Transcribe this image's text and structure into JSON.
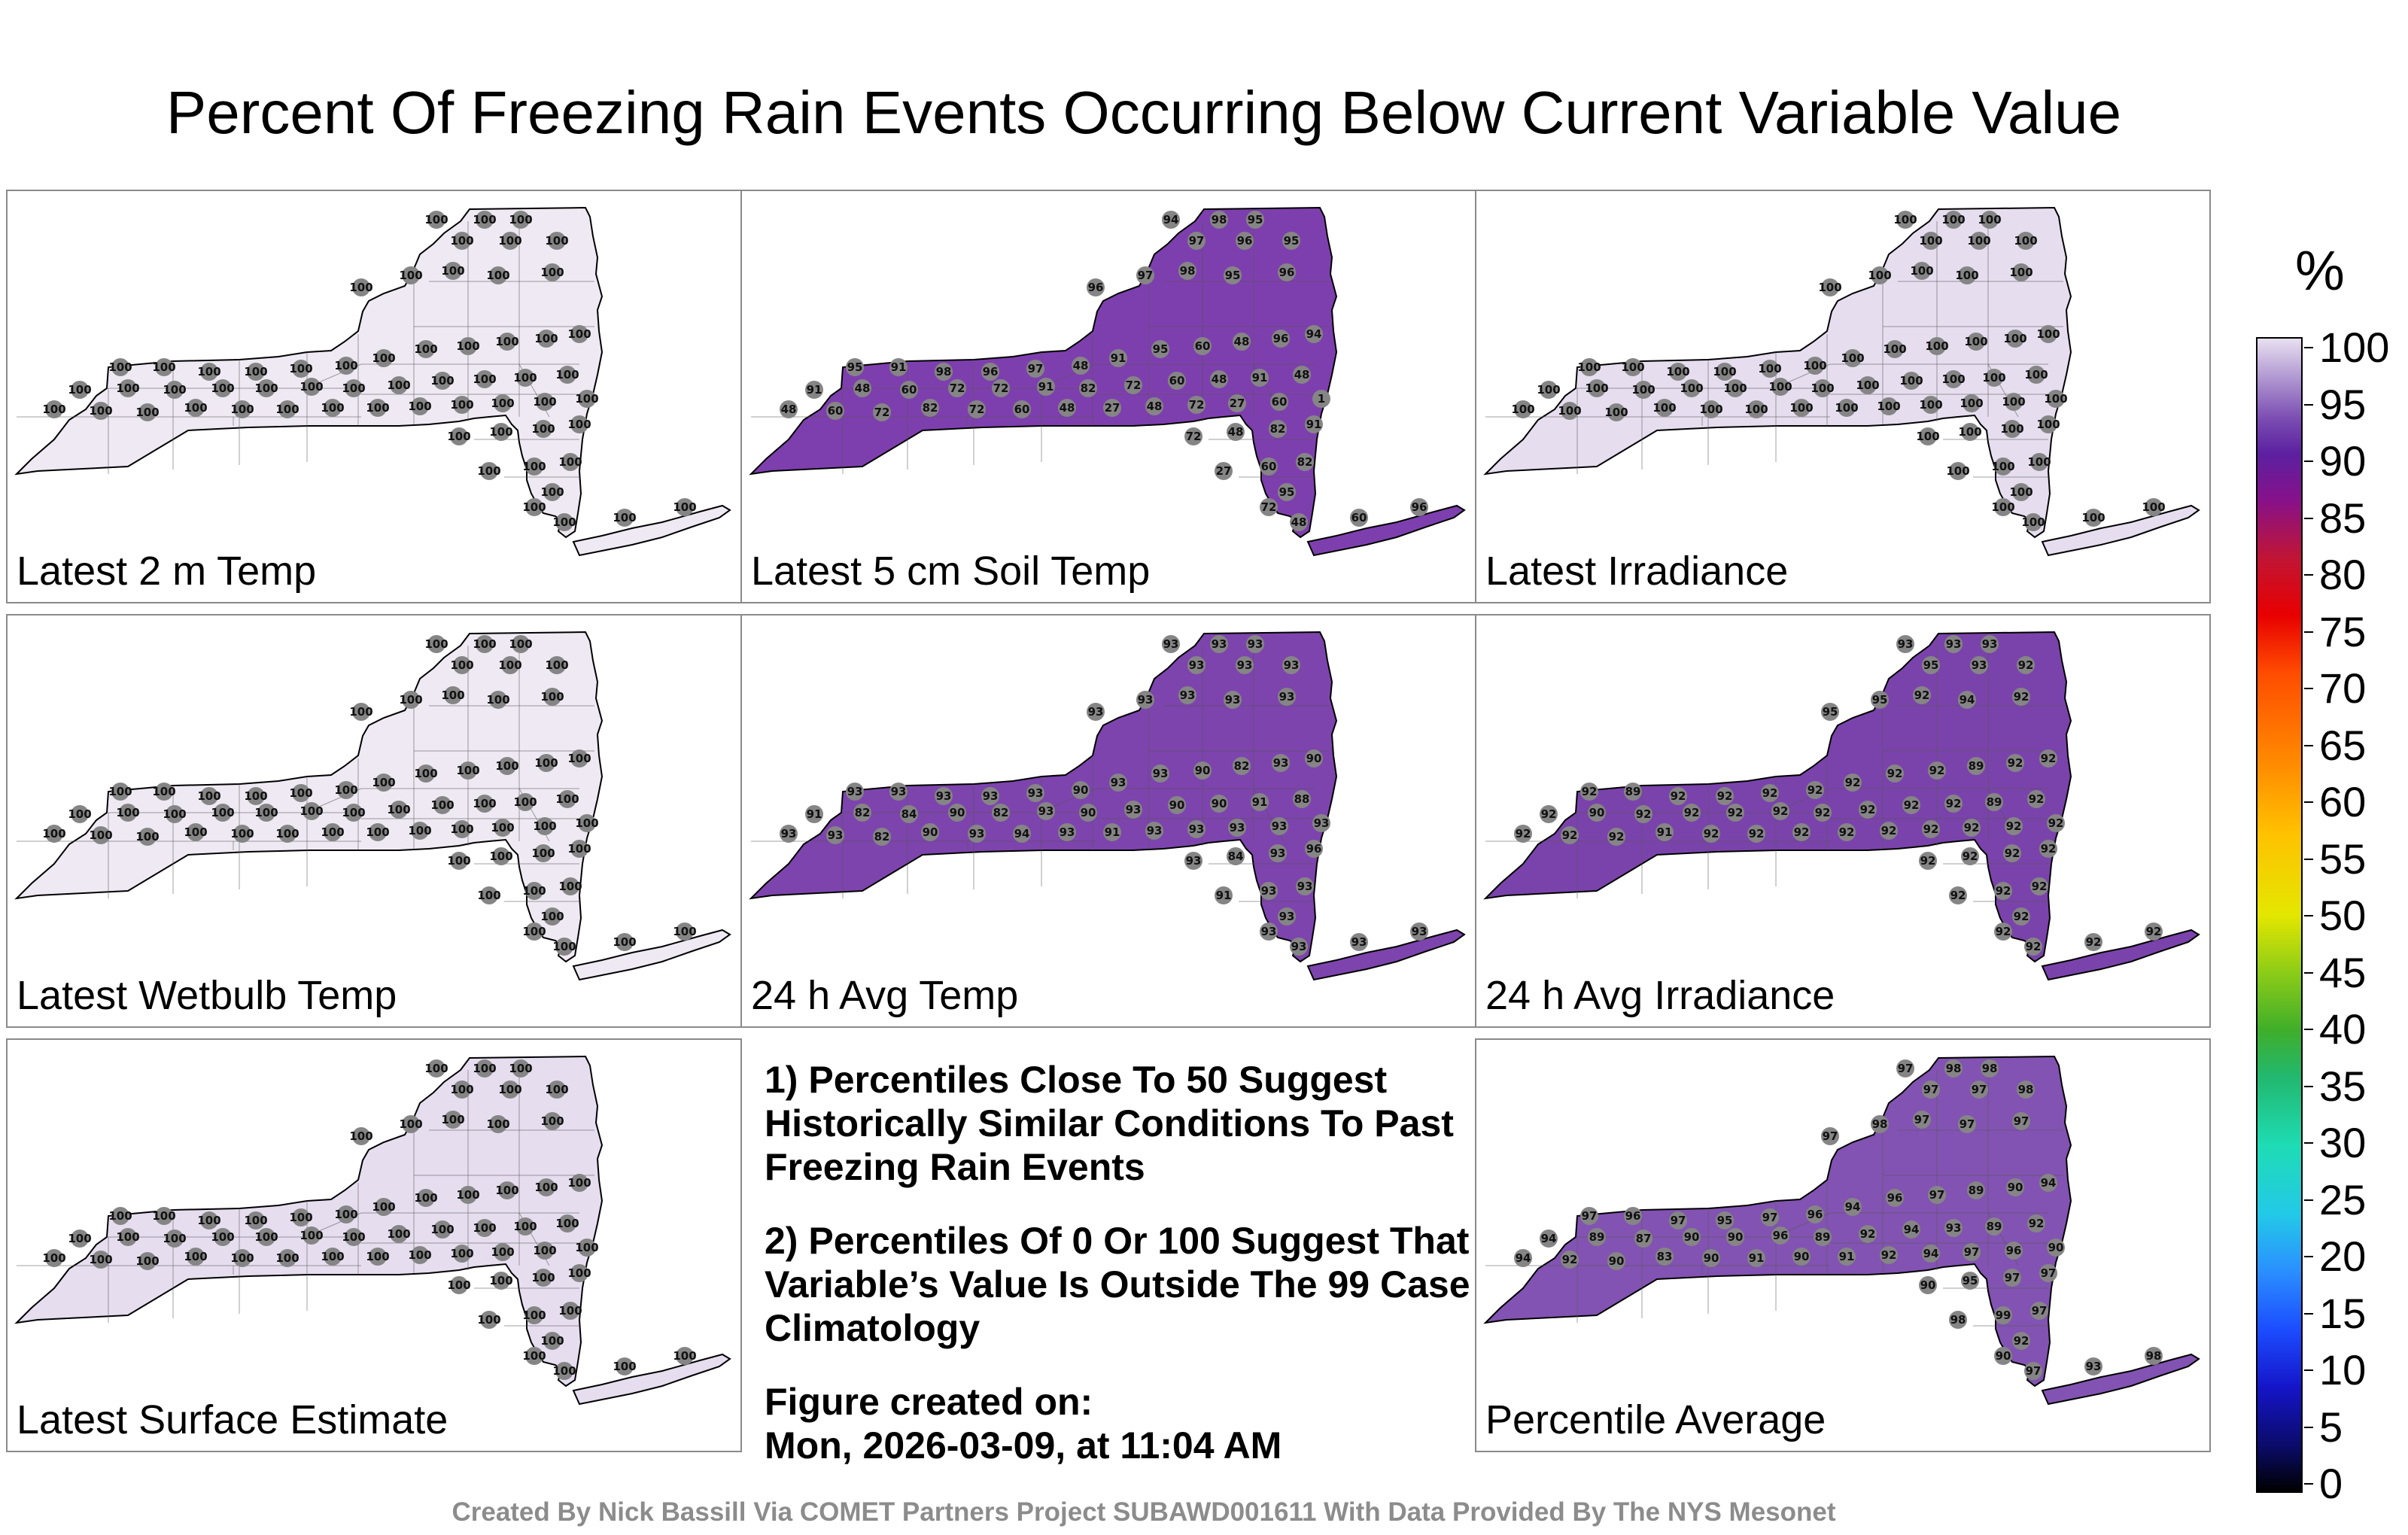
{
  "title": "Percent Of Freezing Rain Events Occurring Below Current Variable Value",
  "panels": [
    {
      "label": "Latest 2 m Temp",
      "fill": "#efe9f3"
    },
    {
      "label": "Latest 5 cm Soil Temp",
      "fill": "#7e3fae"
    },
    {
      "label": "Latest Irradiance",
      "fill": "#e6ddef"
    },
    {
      "label": "Latest Wetbulb Temp",
      "fill": "#efe9f3"
    },
    {
      "label": "24 h Avg Temp",
      "fill": "#7d44ad"
    },
    {
      "label": "24 h Avg Irradiance",
      "fill": "#7a43ab"
    },
    {
      "label": "Latest Surface Estimate",
      "fill": "#e6ddef"
    },
    {
      "label": "Percentile Average",
      "fill": "#8253b2"
    }
  ],
  "notes": {
    "note1": "1) Percentiles Close To 50 Suggest Historically Similar Conditions To Past Freezing Rain Events",
    "note2": "2) Percentiles Of 0 Or 100 Suggest That Variable’s Value Is Outside The 99 Case Climatology",
    "created_label": "Figure created on:",
    "created_value": "Mon, 2026-03-09, at 11:04 AM"
  },
  "credit": "Created By Nick Bassill Via COMET Partners Project SUBAWD001611 With Data Provided By The NYS Mesonet",
  "colorbar": {
    "unit": "%",
    "ticks": [
      "100",
      "95",
      "90",
      "85",
      "80",
      "75",
      "70",
      "65",
      "60",
      "55",
      "50",
      "45",
      "40",
      "35",
      "30",
      "25",
      "20",
      "15",
      "10",
      "5",
      "0"
    ]
  },
  "station_values": {
    "p0": [
      "100",
      "100",
      "100",
      "100",
      "100",
      "100",
      "100",
      "100",
      "100",
      "100",
      "100",
      "100",
      "100",
      "100",
      "100",
      "100",
      "100",
      "100",
      "100",
      "100",
      "100",
      "100",
      "100",
      "100",
      "100",
      "100",
      "100",
      "100",
      "100",
      "100",
      "100",
      "100",
      "100",
      "100",
      "100",
      "100",
      "100",
      "100",
      "100",
      "100",
      "100",
      "100",
      "100",
      "100",
      "100",
      "100",
      "100",
      "100",
      "100",
      "100",
      "100",
      "100",
      "100",
      "100",
      "100",
      "100",
      "100",
      "100",
      "100",
      "100"
    ],
    "p1": [
      "94",
      "98",
      "95",
      "97",
      "96",
      "95",
      "96",
      "97",
      "98",
      "95",
      "96",
      "95",
      "91",
      "98",
      "96",
      "97",
      "48",
      "91",
      "95",
      "60",
      "48",
      "96",
      "94",
      "91",
      "48",
      "60",
      "72",
      "72",
      "91",
      "82",
      "72",
      "60",
      "48",
      "91",
      "48",
      "48",
      "60",
      "72",
      "82",
      "72",
      "60",
      "48",
      "27",
      "48",
      "72",
      "27",
      "60",
      "1",
      "72",
      "48",
      "82",
      "91",
      "27",
      "60",
      "82",
      "95",
      "72",
      "48",
      "60",
      "96"
    ],
    "p2": [
      "100",
      "100",
      "100",
      "100",
      "100",
      "100",
      "100",
      "100",
      "100",
      "100",
      "100",
      "100",
      "100",
      "100",
      "100",
      "100",
      "100",
      "100",
      "100",
      "100",
      "100",
      "100",
      "100",
      "100",
      "100",
      "100",
      "100",
      "100",
      "100",
      "100",
      "100",
      "100",
      "100",
      "100",
      "100",
      "100",
      "100",
      "100",
      "100",
      "100",
      "100",
      "100",
      "100",
      "100",
      "100",
      "100",
      "100",
      "100",
      "100",
      "100",
      "100",
      "100",
      "100",
      "100",
      "100",
      "100",
      "100",
      "100",
      "100",
      "100"
    ],
    "p3": [
      "100",
      "100",
      "100",
      "100",
      "100",
      "100",
      "100",
      "100",
      "100",
      "100",
      "100",
      "100",
      "100",
      "100",
      "100",
      "100",
      "100",
      "100",
      "100",
      "100",
      "100",
      "100",
      "100",
      "100",
      "100",
      "100",
      "100",
      "100",
      "100",
      "100",
      "100",
      "100",
      "100",
      "100",
      "100",
      "100",
      "100",
      "100",
      "100",
      "100",
      "100",
      "100",
      "100",
      "100",
      "100",
      "100",
      "100",
      "100",
      "100",
      "100",
      "100",
      "100",
      "100",
      "100",
      "100",
      "100",
      "100",
      "100",
      "100",
      "100"
    ],
    "p4": [
      "93",
      "93",
      "93",
      "93",
      "93",
      "93",
      "93",
      "93",
      "93",
      "93",
      "93",
      "93",
      "93",
      "93",
      "93",
      "93",
      "90",
      "93",
      "93",
      "90",
      "82",
      "93",
      "90",
      "91",
      "82",
      "84",
      "90",
      "82",
      "93",
      "90",
      "93",
      "90",
      "90",
      "91",
      "88",
      "93",
      "93",
      "82",
      "90",
      "93",
      "94",
      "93",
      "91",
      "93",
      "93",
      "93",
      "93",
      "93",
      "93",
      "84",
      "93",
      "96",
      "91",
      "93",
      "93",
      "93",
      "93",
      "93",
      "93",
      "93"
    ],
    "p5": [
      "93",
      "93",
      "93",
      "95",
      "93",
      "92",
      "95",
      "95",
      "92",
      "94",
      "92",
      "92",
      "89",
      "92",
      "92",
      "92",
      "92",
      "92",
      "92",
      "92",
      "89",
      "92",
      "92",
      "92",
      "90",
      "92",
      "92",
      "92",
      "92",
      "92",
      "92",
      "92",
      "92",
      "89",
      "92",
      "92",
      "92",
      "92",
      "91",
      "92",
      "92",
      "92",
      "92",
      "92",
      "92",
      "92",
      "92",
      "92",
      "92",
      "92",
      "92",
      "92",
      "92",
      "92",
      "92",
      "92",
      "92",
      "92",
      "92",
      "92"
    ],
    "p6": [
      "100",
      "100",
      "100",
      "100",
      "100",
      "100",
      "100",
      "100",
      "100",
      "100",
      "100",
      "100",
      "100",
      "100",
      "100",
      "100",
      "100",
      "100",
      "100",
      "100",
      "100",
      "100",
      "100",
      "100",
      "100",
      "100",
      "100",
      "100",
      "100",
      "100",
      "100",
      "100",
      "100",
      "100",
      "100",
      "100",
      "100",
      "100",
      "100",
      "100",
      "100",
      "100",
      "100",
      "100",
      "100",
      "100",
      "100",
      "100",
      "100",
      "100",
      "100",
      "100",
      "100",
      "100",
      "100",
      "100",
      "100",
      "100",
      "100",
      "100"
    ],
    "p7": [
      "97",
      "98",
      "98",
      "97",
      "97",
      "98",
      "97",
      "98",
      "97",
      "97",
      "97",
      "97",
      "96",
      "97",
      "95",
      "97",
      "96",
      "94",
      "96",
      "97",
      "89",
      "90",
      "94",
      "94",
      "89",
      "87",
      "90",
      "90",
      "96",
      "89",
      "92",
      "94",
      "93",
      "89",
      "92",
      "94",
      "92",
      "90",
      "83",
      "90",
      "91",
      "90",
      "91",
      "92",
      "94",
      "97",
      "96",
      "90",
      "90",
      "95",
      "97",
      "97",
      "98",
      "99",
      "97",
      "92",
      "90",
      "97",
      "93",
      "98"
    ]
  }
}
